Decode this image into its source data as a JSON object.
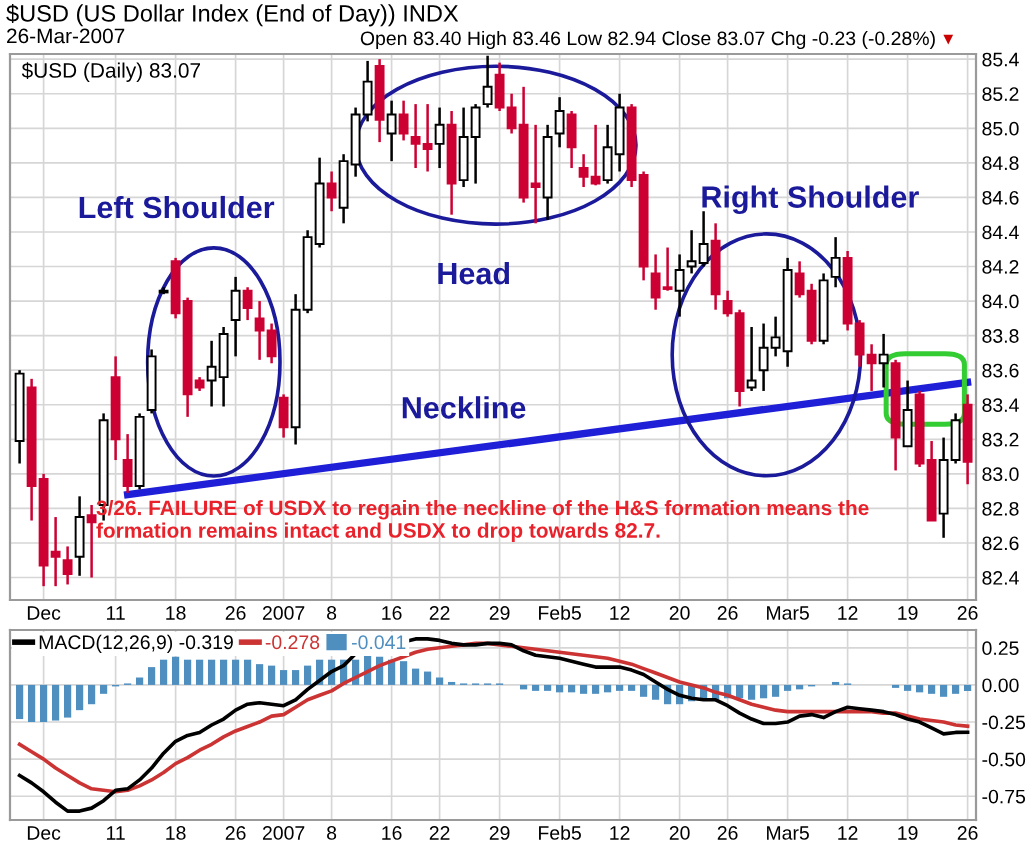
{
  "chart_data": [
    {
      "type": "candlestick",
      "title": "$USD (US Dollar Index (End of Day)) INDX",
      "subtitle": "26-Mar-2007",
      "legend_title": "$USD (Daily) 83.07",
      "grid": true,
      "colors": [
        "#ffffff",
        "#cc0033",
        "#cc0033",
        "#cc0033",
        "#cc0033",
        "#ffffff",
        "#cc0033",
        "#ffffff",
        "#cc0033",
        "#cc0033",
        "#ffffff",
        "#ffffff",
        "#ffffff",
        "#cc0033",
        "#cc0033",
        "#cc0033",
        "#ffffff",
        "#ffffff",
        "#ffffff",
        "#cc0033",
        "#cc0033",
        "#cc0033",
        "#cc0033",
        "#ffffff",
        "#ffffff",
        "#ffffff",
        "#cc0033",
        "#ffffff",
        "#ffffff",
        "#ffffff",
        "#cc0033",
        "#ffffff",
        "#cc0033",
        "#cc0033",
        "#cc0033",
        "#ffffff",
        "#cc0033",
        "#ffffff",
        "#ffffff",
        "#ffffff",
        "#cc0033",
        "#cc0033",
        "#cc0033",
        "#cc0033",
        "#ffffff",
        "#ffffff",
        "#cc0033",
        "#cc0033",
        "#cc0033",
        "#ffffff",
        "#ffffff",
        "#cc0033",
        "#cc0033",
        "#cc0033",
        "#cc0033",
        "#ffffff",
        "#ffffff",
        "#ffffff",
        "#cc0033",
        "#cc0033",
        "#cc0033",
        "#ffffff",
        "#ffffff",
        "#ffffff",
        "#ffffff",
        "#cc0033",
        "#cc0033",
        "#ffffff",
        "#ffffff",
        "#cc0033",
        "#cc0033",
        "#cc0033",
        "#ffffff",
        "#cc0033",
        "#ffffff",
        "#cc0033",
        "#cc0033",
        "#ffffff",
        "#ffffff",
        "#cc0033"
      ],
      "categories": [
        null,
        null,
        "Dec",
        null,
        null,
        null,
        null,
        null,
        "11",
        null,
        null,
        null,
        null,
        "18",
        null,
        null,
        null,
        null,
        "26",
        null,
        null,
        null,
        "2007",
        null,
        null,
        null,
        "8",
        null,
        null,
        null,
        null,
        "16",
        null,
        null,
        null,
        "22",
        null,
        null,
        null,
        null,
        "29",
        null,
        null,
        null,
        null,
        "Feb5",
        null,
        null,
        null,
        null,
        "12",
        null,
        null,
        null,
        null,
        "20",
        null,
        null,
        null,
        "26",
        null,
        null,
        null,
        null,
        "Mar5",
        null,
        null,
        null,
        null,
        "12",
        null,
        null,
        null,
        null,
        "19",
        null,
        null,
        null,
        null,
        "26"
      ],
      "ylim": [
        82.27,
        85.43
      ],
      "yticks": [
        82.4,
        82.6,
        82.8,
        {
          "value": 83,
          "label": "83.0"
        },
        83.2,
        83.4,
        83.6,
        83.8,
        {
          "value": 84,
          "label": "84.0"
        },
        84.2,
        84.4,
        84.6,
        84.8,
        {
          "value": 85,
          "label": "85.0"
        },
        85.2,
        85.4
      ],
      "ohlc": [
        [
          83.19,
          83.6,
          83.06,
          83.58
        ],
        [
          83.5,
          83.55,
          82.73,
          82.93
        ],
        [
          82.97,
          83.0,
          82.35,
          82.47
        ],
        [
          82.55,
          82.75,
          82.35,
          82.52
        ],
        [
          82.5,
          82.58,
          82.36,
          82.42
        ],
        [
          82.52,
          82.87,
          82.41,
          82.75
        ],
        [
          82.76,
          82.82,
          82.4,
          82.72
        ],
        [
          82.82,
          83.35,
          82.73,
          83.31
        ],
        [
          83.56,
          83.68,
          83.08,
          83.2
        ],
        [
          83.08,
          83.23,
          82.89,
          82.93
        ],
        [
          82.93,
          83.35,
          82.91,
          83.33
        ],
        [
          83.37,
          83.72,
          83.35,
          83.68
        ],
        [
          84.05,
          84.08,
          84.04,
          84.06
        ],
        [
          84.23,
          84.25,
          83.9,
          83.93
        ],
        [
          84.0,
          84.02,
          83.33,
          83.46
        ],
        [
          83.54,
          83.56,
          83.48,
          83.5
        ],
        [
          83.54,
          83.77,
          83.39,
          83.62
        ],
        [
          83.56,
          83.85,
          83.39,
          83.81
        ],
        [
          83.89,
          84.14,
          83.68,
          84.06
        ],
        [
          84.06,
          84.08,
          83.89,
          83.96
        ],
        [
          83.9,
          84.0,
          83.66,
          83.83
        ],
        [
          83.83,
          83.87,
          83.64,
          83.68
        ],
        [
          83.44,
          83.46,
          83.21,
          83.27
        ],
        [
          83.27,
          84.04,
          83.17,
          83.95
        ],
        [
          83.95,
          84.41,
          83.93,
          84.37
        ],
        [
          84.33,
          84.83,
          84.31,
          84.68
        ],
        [
          84.68,
          84.75,
          84.52,
          84.6
        ],
        [
          84.54,
          84.85,
          84.45,
          84.81
        ],
        [
          84.79,
          85.12,
          84.72,
          85.08
        ],
        [
          85.08,
          85.39,
          85.04,
          85.27
        ],
        [
          85.36,
          85.4,
          84.92,
          85.05
        ],
        [
          84.97,
          85.16,
          84.81,
          85.08
        ],
        [
          85.08,
          85.16,
          84.93,
          84.97
        ],
        [
          84.95,
          85.14,
          84.77,
          84.91
        ],
        [
          84.91,
          85.14,
          84.75,
          84.88
        ],
        [
          84.91,
          85.12,
          84.77,
          85.02
        ],
        [
          85.02,
          85.1,
          84.5,
          84.68
        ],
        [
          84.7,
          85.12,
          84.66,
          84.95
        ],
        [
          84.95,
          85.14,
          84.68,
          85.12
        ],
        [
          85.14,
          85.42,
          85.12,
          85.24
        ],
        [
          85.31,
          85.38,
          85.1,
          85.12
        ],
        [
          85.12,
          85.2,
          84.97,
          85.0
        ],
        [
          85.02,
          85.24,
          84.57,
          84.6
        ],
        [
          84.68,
          85.02,
          84.45,
          84.66
        ],
        [
          84.6,
          85.02,
          84.47,
          84.95
        ],
        [
          84.97,
          85.18,
          84.89,
          85.1
        ],
        [
          85.08,
          85.1,
          84.77,
          84.89
        ],
        [
          84.77,
          84.85,
          84.66,
          84.72
        ],
        [
          84.72,
          85.02,
          84.67,
          84.68
        ],
        [
          84.7,
          85.02,
          84.68,
          84.89
        ],
        [
          84.85,
          85.2,
          84.75,
          85.12
        ],
        [
          85.12,
          85.14,
          84.66,
          84.7
        ],
        [
          84.73,
          84.75,
          84.12,
          84.2
        ],
        [
          84.16,
          84.27,
          83.95,
          84.02
        ],
        [
          84.08,
          84.31,
          84.06,
          84.07
        ],
        [
          84.06,
          84.27,
          83.91,
          84.18
        ],
        [
          84.2,
          84.41,
          84.16,
          84.23
        ],
        [
          84.22,
          84.52,
          84.2,
          84.33
        ],
        [
          84.35,
          84.45,
          83.95,
          84.04
        ],
        [
          84.0,
          84.06,
          83.91,
          83.93
        ],
        [
          83.93,
          83.95,
          83.39,
          83.48
        ],
        [
          83.5,
          83.85,
          83.48,
          83.54
        ],
        [
          83.6,
          83.87,
          83.48,
          83.73
        ],
        [
          83.73,
          83.91,
          83.68,
          83.79
        ],
        [
          83.71,
          84.25,
          83.62,
          84.18
        ],
        [
          84.16,
          84.23,
          84.02,
          84.04
        ],
        [
          84.06,
          84.1,
          83.75,
          83.77
        ],
        [
          83.77,
          84.16,
          83.75,
          84.12
        ],
        [
          84.14,
          84.37,
          84.08,
          84.25
        ],
        [
          84.25,
          84.29,
          83.83,
          83.87
        ],
        [
          83.87,
          83.89,
          83.62,
          83.69
        ],
        [
          83.69,
          83.75,
          83.48,
          83.64
        ],
        [
          83.64,
          83.81,
          83.5,
          83.69
        ],
        [
          83.64,
          83.66,
          83.02,
          83.21
        ],
        [
          83.16,
          83.54,
          83.16,
          83.37
        ],
        [
          83.46,
          83.48,
          83.04,
          83.06
        ],
        [
          83.08,
          83.19,
          82.73,
          82.73
        ],
        [
          82.77,
          83.21,
          82.63,
          83.08
        ],
        [
          83.08,
          83.35,
          83.06,
          83.31
        ],
        [
          83.4,
          83.46,
          82.94,
          83.07
        ]
      ],
      "series": [
        {
          "name": "Neckline",
          "type": "line",
          "color": "#1f1fd8",
          "values": [
            null,
            null,
            null,
            null,
            null,
            null,
            null,
            null,
            null,
            82.88,
            null,
            null,
            null,
            null,
            null,
            null,
            null,
            null,
            null,
            null,
            null,
            null,
            null,
            null,
            null,
            null,
            null,
            null,
            null,
            null,
            null,
            null,
            null,
            null,
            null,
            null,
            null,
            null,
            null,
            null,
            null,
            null,
            null,
            null,
            null,
            null,
            null,
            null,
            null,
            null,
            null,
            null,
            null,
            null,
            null,
            null,
            null,
            null,
            null,
            null,
            null,
            null,
            null,
            null,
            null,
            null,
            null,
            null,
            null,
            null,
            null,
            null,
            null,
            null,
            null,
            null,
            null,
            null,
            null,
            83.53
          ]
        }
      ],
      "annotations": [
        "Open 83.40 High 83.46 Low 82.94 Close 83.07 Chg -0.23 (-0.28%)",
        "▼",
        "Left Shoulder",
        "Head",
        "Right Shoulder",
        "3/26. FAILURE of USDX to regain the neckline of the H&S formation means the formation remains intact and USDX to drop towards 82.7."
      ]
    },
    {
      "type": "line",
      "legend": "top left",
      "grid": true,
      "categories": [
        null,
        null,
        "Dec",
        null,
        null,
        null,
        null,
        null,
        "11",
        null,
        null,
        null,
        null,
        "18",
        null,
        null,
        null,
        null,
        "26",
        null,
        null,
        null,
        "2007",
        null,
        null,
        null,
        "8",
        null,
        null,
        null,
        null,
        "16",
        null,
        null,
        null,
        "22",
        null,
        null,
        null,
        null,
        "29",
        null,
        null,
        null,
        null,
        "Feb5",
        null,
        null,
        null,
        null,
        "12",
        null,
        null,
        null,
        null,
        "20",
        null,
        null,
        null,
        "26",
        null,
        null,
        null,
        null,
        "Mar5",
        null,
        null,
        null,
        null,
        "12",
        null,
        null,
        null,
        null,
        "19",
        null,
        null,
        null,
        null,
        "26"
      ],
      "ylim": [
        -0.91,
        0.37
      ],
      "yticks": [
        {
          "value": -0.75,
          "label": "-0.75"
        },
        {
          "value": -0.5,
          "label": "-0.50"
        },
        {
          "value": -0.25,
          "label": "-0.25"
        },
        {
          "value": 0,
          "label": "0.00"
        },
        {
          "value": 0.25,
          "label": "0.25"
        }
      ],
      "series": [
        {
          "name": "-0.041",
          "type": "bar",
          "color": "#4f8fc0",
          "values": [
            -0.23,
            -0.25,
            -0.25,
            -0.24,
            -0.22,
            -0.17,
            -0.13,
            -0.06,
            -0.01,
            0.01,
            0.05,
            0.12,
            0.17,
            0.19,
            0.17,
            0.17,
            0.17,
            0.17,
            0.17,
            0.17,
            0.14,
            0.13,
            0.1,
            0.1,
            0.13,
            0.17,
            0.17,
            0.17,
            0.17,
            0.2,
            0.19,
            0.17,
            0.16,
            0.11,
            0.09,
            0.05,
            0.02,
            0.01,
            0.01,
            0.01,
            0.01,
            0.0,
            -0.03,
            -0.04,
            -0.04,
            -0.05,
            -0.05,
            -0.06,
            -0.06,
            -0.05,
            -0.04,
            -0.04,
            -0.08,
            -0.1,
            -0.13,
            -0.13,
            -0.11,
            -0.1,
            -0.1,
            -0.09,
            -0.09,
            -0.1,
            -0.09,
            -0.08,
            -0.04,
            -0.03,
            -0.01,
            0.0,
            0.02,
            0.01,
            0.0,
            0.0,
            0.0,
            -0.02,
            -0.04,
            -0.05,
            -0.06,
            -0.08,
            -0.06,
            -0.041
          ]
        },
        {
          "name": "-0.278",
          "color": "#cc3333",
          "values": [
            -0.4,
            -0.45,
            -0.5,
            -0.56,
            -0.61,
            -0.66,
            -0.7,
            -0.71,
            -0.72,
            -0.71,
            -0.68,
            -0.64,
            -0.59,
            -0.53,
            -0.49,
            -0.44,
            -0.4,
            -0.35,
            -0.31,
            -0.28,
            -0.25,
            -0.21,
            -0.2,
            -0.15,
            -0.1,
            -0.07,
            -0.04,
            0.01,
            0.05,
            0.09,
            0.13,
            0.16,
            0.19,
            0.22,
            0.24,
            0.25,
            0.26,
            0.27,
            0.28,
            0.28,
            0.27,
            0.26,
            0.25,
            0.24,
            0.23,
            0.22,
            0.21,
            0.2,
            0.19,
            0.18,
            0.16,
            0.14,
            0.11,
            0.08,
            0.05,
            0.02,
            0.0,
            -0.02,
            -0.05,
            -0.07,
            -0.1,
            -0.13,
            -0.15,
            -0.17,
            -0.18,
            -0.18,
            -0.18,
            -0.18,
            -0.18,
            -0.18,
            -0.18,
            -0.18,
            -0.19,
            -0.19,
            -0.21,
            -0.23,
            -0.24,
            -0.25,
            -0.27,
            -0.278
          ]
        },
        {
          "name": "MACD(12,26,9) -0.319",
          "color": "#000000",
          "values": [
            -0.61,
            -0.66,
            -0.72,
            -0.79,
            -0.85,
            -0.85,
            -0.83,
            -0.78,
            -0.71,
            -0.7,
            -0.64,
            -0.56,
            -0.46,
            -0.38,
            -0.34,
            -0.32,
            -0.27,
            -0.23,
            -0.17,
            -0.13,
            -0.12,
            -0.13,
            -0.14,
            -0.1,
            -0.03,
            0.03,
            0.09,
            0.13,
            0.21,
            null,
            null,
            null,
            null,
            0.31,
            0.31,
            0.3,
            0.28,
            0.27,
            0.27,
            0.28,
            0.28,
            0.27,
            0.23,
            0.2,
            0.19,
            0.18,
            0.16,
            0.14,
            0.12,
            0.12,
            0.12,
            0.1,
            0.07,
            0.02,
            -0.03,
            -0.07,
            -0.09,
            -0.1,
            -0.1,
            -0.14,
            -0.19,
            -0.23,
            -0.26,
            -0.26,
            -0.25,
            -0.21,
            -0.2,
            -0.22,
            -0.18,
            -0.15,
            -0.16,
            -0.17,
            -0.18,
            -0.2,
            -0.23,
            -0.25,
            -0.29,
            -0.33,
            -0.32,
            -0.319
          ]
        }
      ]
    }
  ]
}
